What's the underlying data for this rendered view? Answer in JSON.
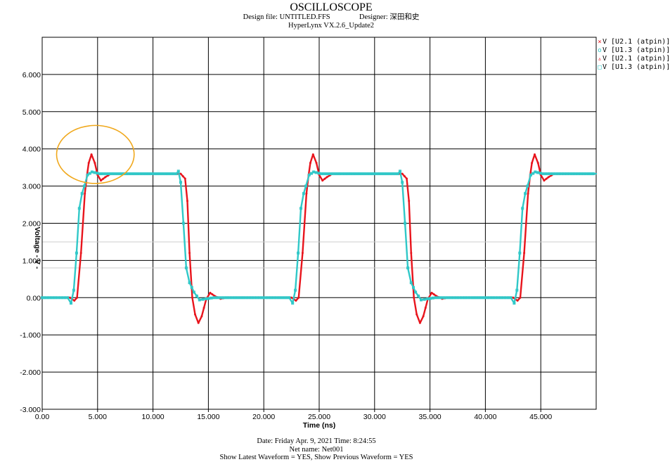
{
  "header": {
    "title": "OSCILLOSCOPE",
    "design_file_label": "Design file:",
    "design_file": "UNTITLED.FFS",
    "designer_label": "Designer:",
    "designer": "深田和史",
    "software": "HyperLynx VX.2.6_Update2"
  },
  "footer": {
    "date_line": "Date: Friday Apr. 9, 2021   Time: 8:24:55",
    "net_line": "Net name: Net001",
    "show_line": "Show Latest Waveform = YES,  Show Previous Waveform = YES"
  },
  "legend": [
    {
      "marker": "×",
      "label": "V [U2.1 (atpin)]",
      "color": "#e8141c"
    },
    {
      "marker": "o",
      "label": "V [U1.3 (atpin)]",
      "color": "#30c8c8"
    },
    {
      "marker": "▵",
      "label": "V [U2.1 (atpin)]",
      "color": "#e8141c"
    },
    {
      "marker": "□",
      "label": "V [U1.3 (atpin)]",
      "color": "#30c8c8"
    }
  ],
  "highlight_color": "#f0a81c",
  "chart_data": {
    "type": "line",
    "xlabel": "Time  (ns)",
    "ylabel": "Voltage  - V -",
    "xlim": [
      0,
      50
    ],
    "ylim": [
      -3,
      7
    ],
    "x_ticks": [
      0,
      5,
      10,
      15,
      20,
      25,
      30,
      35,
      40,
      45
    ],
    "x_tick_labels": [
      "0.00",
      "5.000",
      "10.000",
      "15.000",
      "20.000",
      "25.000",
      "30.000",
      "35.000",
      "40.000",
      "45.000"
    ],
    "y_ticks": [
      -3,
      -2,
      -1,
      0,
      1,
      2,
      3,
      4,
      5,
      6
    ],
    "y_tick_labels": [
      "-3.000",
      "-2.000",
      "-1.000",
      "0.00",
      "1.000",
      "2.000",
      "3.000",
      "4.000",
      "5.000",
      "6.000"
    ],
    "grid": true,
    "legend_position": "outside-top-right",
    "annotation": {
      "shape": "ellipse",
      "cx": 4.8,
      "cy": 3.85,
      "rx": 3.5,
      "ry": 0.78
    },
    "series": [
      {
        "name": "V [U2.1 (atpin)]",
        "color": "#e8141c",
        "points": [
          [
            0,
            0
          ],
          [
            2.5,
            0
          ],
          [
            2.9,
            -0.08
          ],
          [
            3.15,
            0
          ],
          [
            3.5,
            1.2
          ],
          [
            3.85,
            2.8
          ],
          [
            4.05,
            3.3
          ],
          [
            4.2,
            3.62
          ],
          [
            4.45,
            3.85
          ],
          [
            4.75,
            3.62
          ],
          [
            5.0,
            3.3
          ],
          [
            5.3,
            3.15
          ],
          [
            5.7,
            3.24
          ],
          [
            6.2,
            3.33
          ],
          [
            12.5,
            3.33
          ],
          [
            12.9,
            3.2
          ],
          [
            13.1,
            2.6
          ],
          [
            13.3,
            1.2
          ],
          [
            13.55,
            0.0
          ],
          [
            13.8,
            -0.45
          ],
          [
            14.1,
            -0.68
          ],
          [
            14.4,
            -0.5
          ],
          [
            14.8,
            -0.05
          ],
          [
            15.15,
            0.13
          ],
          [
            15.55,
            0.05
          ],
          [
            16.1,
            -0.03
          ],
          [
            16.6,
            0
          ],
          [
            22.5,
            0
          ],
          [
            22.9,
            -0.08
          ],
          [
            23.15,
            0
          ],
          [
            23.5,
            1.2
          ],
          [
            23.85,
            2.8
          ],
          [
            24.05,
            3.3
          ],
          [
            24.2,
            3.62
          ],
          [
            24.45,
            3.85
          ],
          [
            24.75,
            3.62
          ],
          [
            25.0,
            3.3
          ],
          [
            25.3,
            3.15
          ],
          [
            25.7,
            3.24
          ],
          [
            26.2,
            3.33
          ],
          [
            32.5,
            3.33
          ],
          [
            32.9,
            3.2
          ],
          [
            33.1,
            2.6
          ],
          [
            33.3,
            1.2
          ],
          [
            33.55,
            0.0
          ],
          [
            33.8,
            -0.45
          ],
          [
            34.1,
            -0.68
          ],
          [
            34.4,
            -0.5
          ],
          [
            34.8,
            -0.05
          ],
          [
            35.15,
            0.13
          ],
          [
            35.55,
            0.05
          ],
          [
            36.1,
            -0.03
          ],
          [
            36.6,
            0
          ],
          [
            42.5,
            0
          ],
          [
            42.9,
            -0.08
          ],
          [
            43.15,
            0
          ],
          [
            43.5,
            1.2
          ],
          [
            43.85,
            2.8
          ],
          [
            44.05,
            3.3
          ],
          [
            44.2,
            3.62
          ],
          [
            44.45,
            3.85
          ],
          [
            44.75,
            3.62
          ],
          [
            45.0,
            3.3
          ],
          [
            45.3,
            3.15
          ],
          [
            45.7,
            3.24
          ],
          [
            46.2,
            3.33
          ],
          [
            50,
            3.33
          ]
        ]
      },
      {
        "name": "V [U1.3 (atpin)]",
        "color": "#30c8c8",
        "points": [
          [
            0,
            0
          ],
          [
            2.3,
            0
          ],
          [
            2.6,
            -0.15
          ],
          [
            2.85,
            0.2
          ],
          [
            3.1,
            1.2
          ],
          [
            3.35,
            2.4
          ],
          [
            3.6,
            2.8
          ],
          [
            3.8,
            3.0
          ],
          [
            4.1,
            3.3
          ],
          [
            4.5,
            3.38
          ],
          [
            5.2,
            3.33
          ],
          [
            12.1,
            3.33
          ],
          [
            12.3,
            3.4
          ],
          [
            12.5,
            3.1
          ],
          [
            12.75,
            2.0
          ],
          [
            13.0,
            0.8
          ],
          [
            13.3,
            0.4
          ],
          [
            13.7,
            0.15
          ],
          [
            14.2,
            -0.06
          ],
          [
            14.8,
            -0.03
          ],
          [
            15.5,
            0
          ],
          [
            22.3,
            0
          ],
          [
            22.6,
            -0.15
          ],
          [
            22.85,
            0.2
          ],
          [
            23.1,
            1.2
          ],
          [
            23.35,
            2.4
          ],
          [
            23.6,
            2.8
          ],
          [
            23.8,
            3.0
          ],
          [
            24.1,
            3.3
          ],
          [
            24.5,
            3.38
          ],
          [
            25.2,
            3.33
          ],
          [
            32.1,
            3.33
          ],
          [
            32.3,
            3.4
          ],
          [
            32.5,
            3.1
          ],
          [
            32.75,
            2.0
          ],
          [
            33.0,
            0.8
          ],
          [
            33.3,
            0.4
          ],
          [
            33.7,
            0.15
          ],
          [
            34.2,
            -0.06
          ],
          [
            34.8,
            -0.03
          ],
          [
            35.5,
            0
          ],
          [
            42.3,
            0
          ],
          [
            42.6,
            -0.15
          ],
          [
            42.85,
            0.2
          ],
          [
            43.1,
            1.2
          ],
          [
            43.35,
            2.4
          ],
          [
            43.6,
            2.8
          ],
          [
            43.8,
            3.0
          ],
          [
            44.1,
            3.3
          ],
          [
            44.5,
            3.38
          ],
          [
            45.2,
            3.33
          ],
          [
            50,
            3.33
          ]
        ]
      }
    ]
  }
}
